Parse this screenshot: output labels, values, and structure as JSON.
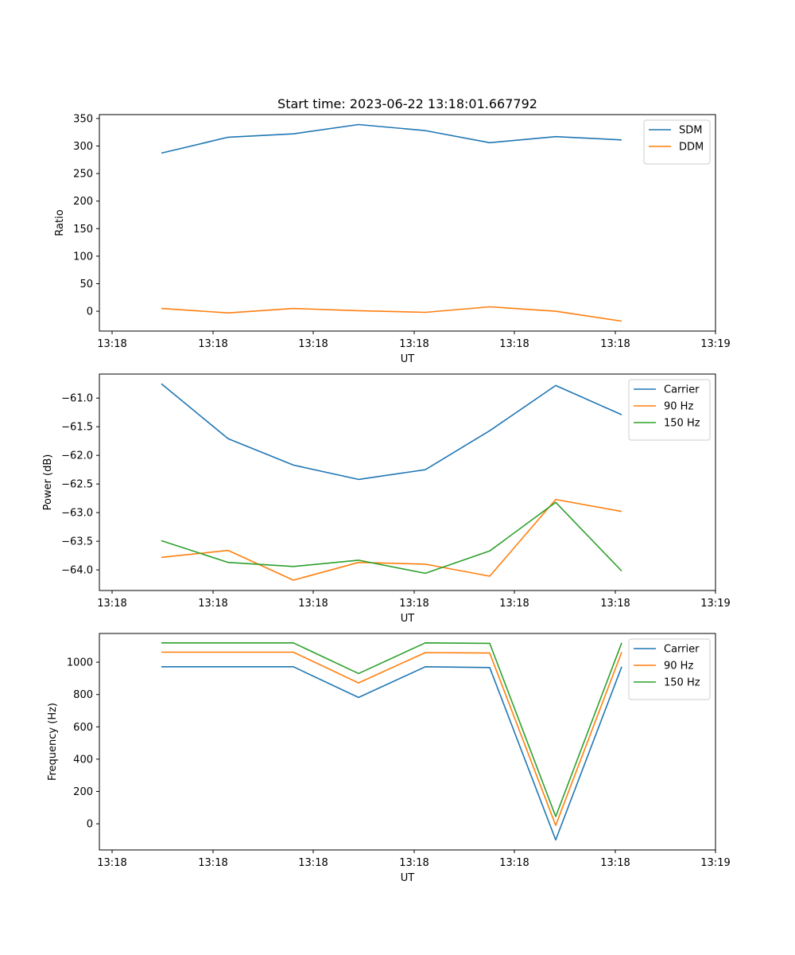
{
  "figure": {
    "title": "Start time: 2023-06-22 13:18:01.667792"
  },
  "colors": {
    "blue": "#1f77b4",
    "orange": "#ff7f0e",
    "green": "#2ca02c"
  },
  "chart_data": [
    {
      "type": "line",
      "title": "Start time: 2023-06-22 13:18:01.667792",
      "xlabel": "UT",
      "ylabel": "Ratio",
      "x_tick_labels": [
        "13:18",
        "13:18",
        "13:18",
        "13:18",
        "13:18",
        "13:18",
        "13:19"
      ],
      "y_ticks": [
        0,
        50,
        100,
        150,
        200,
        250,
        300,
        350
      ],
      "y_tick_labels": [
        "0",
        "50",
        "100",
        "150",
        "200",
        "250",
        "300",
        "350"
      ],
      "ylim": [
        -36,
        357
      ],
      "legend_position": "top-right",
      "grid": false,
      "series": [
        {
          "name": "SDM",
          "color": "#1f77b4",
          "values": [
            287,
            316,
            322,
            339,
            328,
            306,
            317,
            311
          ]
        },
        {
          "name": "DDM",
          "color": "#ff7f0e",
          "values": [
            5,
            -3,
            5,
            1,
            -2,
            8,
            0,
            -18
          ]
        }
      ]
    },
    {
      "type": "line",
      "title": "",
      "xlabel": "UT",
      "ylabel": "Power (dB)",
      "x_tick_labels": [
        "13:18",
        "13:18",
        "13:18",
        "13:18",
        "13:18",
        "13:18",
        "13:19"
      ],
      "y_ticks": [
        -64.0,
        -63.5,
        -63.0,
        -62.5,
        -62.0,
        -61.5,
        -61.0
      ],
      "y_tick_labels": [
        "−64.0",
        "−63.5",
        "−63.0",
        "−62.5",
        "−62.0",
        "−61.5",
        "−61.0"
      ],
      "ylim": [
        -64.36,
        -60.58
      ],
      "legend_position": "top-right",
      "grid": false,
      "series": [
        {
          "name": "Carrier",
          "color": "#1f77b4",
          "values": [
            -60.75,
            -61.71,
            -62.17,
            -62.42,
            -62.25,
            -61.57,
            -60.78,
            -61.29
          ]
        },
        {
          "name": "90 Hz",
          "color": "#ff7f0e",
          "values": [
            -63.78,
            -63.66,
            -64.18,
            -63.87,
            -63.9,
            -64.11,
            -62.77,
            -62.98
          ]
        },
        {
          "name": "150 Hz",
          "color": "#2ca02c",
          "values": [
            -63.49,
            -63.87,
            -63.94,
            -63.83,
            -64.06,
            -63.67,
            -62.82,
            -64.02
          ]
        }
      ]
    },
    {
      "type": "line",
      "title": "",
      "xlabel": "UT",
      "ylabel": "Frequency (Hz)",
      "x_tick_labels": [
        "13:18",
        "13:18",
        "13:18",
        "13:18",
        "13:18",
        "13:18",
        "13:19"
      ],
      "y_ticks": [
        0,
        200,
        400,
        600,
        800,
        1000
      ],
      "y_tick_labels": [
        "0",
        "200",
        "400",
        "600",
        "800",
        "1000"
      ],
      "ylim": [
        -162,
        1178
      ],
      "legend_position": "top-right",
      "grid": false,
      "series": [
        {
          "name": "Carrier",
          "color": "#1f77b4",
          "values": [
            972,
            972,
            972,
            782,
            972,
            967,
            -100,
            972
          ]
        },
        {
          "name": "90 Hz",
          "color": "#ff7f0e",
          "values": [
            1062,
            1062,
            1062,
            872,
            1060,
            1057,
            -10,
            1062
          ]
        },
        {
          "name": "150 Hz",
          "color": "#2ca02c",
          "values": [
            1120,
            1120,
            1120,
            930,
            1120,
            1117,
            45,
            1120
          ]
        }
      ]
    }
  ]
}
